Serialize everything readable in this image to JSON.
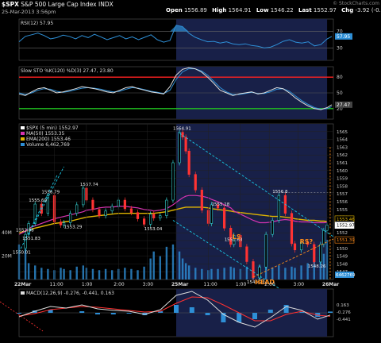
{
  "header": {
    "symbol": "$SPX",
    "name": "S&P 500 Large Cap Index",
    "exchange": "INDX",
    "datetime": "25-Mar-2013 3:56pm",
    "open_label": "Open",
    "open": "1556.89",
    "high_label": "High",
    "high": "1564.91",
    "low_label": "Low",
    "low": "1546.22",
    "last_label": "Last",
    "last": "1552.97",
    "chg_label": "Chg",
    "chg": "-3.92 (-0.25%)",
    "watermark": "© StockCharts.com"
  },
  "colors": {
    "background": "#000000",
    "price_line": "#ffffff",
    "candle_up": "#35d3d3",
    "candle_down": "#ff3333",
    "ma50": "#d633b0",
    "ema200": "#e0b400",
    "volume": "#2e8fd6",
    "annotation": "#ff8c1a",
    "trendline": "#18c8e6",
    "rsi_line": "#2e8fd6",
    "stoch_k": "#dddddd",
    "stoch_d": "#2e8fd6",
    "overbought": "#ff2020",
    "oversold": "#20c020",
    "macd": "#dddddd",
    "macd_signal": "#ff3030",
    "macd_hist": "#2e8fd6",
    "shade": "#182048"
  },
  "chart_data": [
    {
      "type": "line",
      "panel": "rsi",
      "legend": "RSI(12) 57.95",
      "ylim": [
        0,
        100
      ],
      "levels": [
        30,
        70
      ],
      "tick_labels": [
        "70",
        "30"
      ],
      "last_label": "57.95",
      "x": [
        0,
        4,
        8,
        12,
        16,
        20,
        24,
        28,
        32,
        36,
        40,
        44,
        48,
        52,
        56,
        60,
        64,
        68,
        72,
        76,
        80,
        84,
        88,
        92,
        96,
        100,
        104,
        108,
        112,
        116,
        120,
        124,
        128,
        132,
        136,
        140,
        144,
        148,
        152,
        156,
        160,
        164,
        168,
        172,
        176,
        180,
        184,
        188,
        192,
        196,
        199
      ],
      "values": [
        45,
        58,
        62,
        66,
        60,
        52,
        55,
        61,
        58,
        52,
        60,
        55,
        63,
        57,
        50,
        55,
        60,
        52,
        57,
        50,
        56,
        62,
        50,
        44,
        48,
        85,
        82,
        66,
        56,
        50,
        45,
        46,
        42,
        45,
        40,
        38,
        40,
        36,
        34,
        30,
        32,
        38,
        46,
        50,
        44,
        42,
        45,
        35,
        38,
        52,
        57.95
      ]
    },
    {
      "type": "line",
      "panel": "stochastic",
      "legend": "Slow STO %K(120) %D(3) 27.47, 23.80",
      "ylim": [
        0,
        100
      ],
      "levels": [
        20,
        80
      ],
      "tick_labels": [
        "80",
        "50",
        "20"
      ],
      "last_label": "27.47",
      "x": [
        0,
        4,
        8,
        12,
        16,
        20,
        24,
        28,
        32,
        36,
        40,
        44,
        48,
        52,
        56,
        60,
        64,
        68,
        72,
        76,
        80,
        84,
        88,
        92,
        96,
        100,
        104,
        108,
        112,
        116,
        120,
        124,
        128,
        132,
        136,
        140,
        144,
        148,
        152,
        156,
        160,
        164,
        168,
        172,
        176,
        180,
        184,
        188,
        192,
        196,
        199
      ],
      "series": [
        {
          "name": "%K",
          "values": [
            48,
            45,
            52,
            58,
            60,
            55,
            50,
            52,
            55,
            58,
            62,
            60,
            58,
            55,
            52,
            50,
            55,
            60,
            62,
            58,
            55,
            52,
            50,
            48,
            62,
            84,
            95,
            98,
            96,
            90,
            80,
            68,
            55,
            50,
            45,
            48,
            50,
            52,
            48,
            50,
            55,
            60,
            58,
            50,
            40,
            32,
            25,
            20,
            18,
            22,
            27.47
          ]
        },
        {
          "name": "%D",
          "values": [
            50,
            47,
            50,
            55,
            58,
            57,
            53,
            51,
            53,
            56,
            59,
            60,
            59,
            57,
            54,
            52,
            53,
            57,
            60,
            59,
            56,
            53,
            51,
            49,
            55,
            76,
            90,
            96,
            96,
            92,
            84,
            72,
            60,
            52,
            47,
            47,
            49,
            51,
            49,
            49,
            52,
            57,
            58,
            53,
            44,
            35,
            28,
            22,
            19,
            20,
            23.8
          ]
        }
      ]
    },
    {
      "type": "line",
      "panel": "price",
      "legend": [
        "$SPX (5 min) 1552.97",
        "MA(50) 1553.35",
        "EMA(200) 1553.46",
        "Volume 6,462,769"
      ],
      "ylim": [
        1546,
        1566
      ],
      "y_ticks": [
        1547,
        1548,
        1549,
        1550,
        1551,
        1552,
        1553,
        1554,
        1555,
        1556,
        1557,
        1558,
        1559,
        1560,
        1561,
        1562,
        1563,
        1564,
        1565
      ],
      "volume_ticks": [
        "40M",
        "20M"
      ],
      "x_tick_labels": [
        "22Mar",
        "11:00",
        "1:00",
        "2:00",
        "3:00",
        "25Mar",
        "11:00",
        "1:00",
        "2:00",
        "3:00",
        "26Mar"
      ],
      "x_tick_positions": [
        0,
        11,
        21,
        31,
        40,
        49,
        59,
        69,
        78,
        87,
        96
      ],
      "x": [
        0,
        2,
        3,
        5,
        7,
        9,
        11,
        13,
        14,
        16,
        18,
        20,
        21,
        23,
        25,
        27,
        29,
        31,
        33,
        35,
        37,
        39,
        41,
        42,
        44,
        46,
        48,
        50,
        51,
        52,
        53,
        55,
        57,
        59,
        60,
        62,
        64,
        66,
        67,
        69,
        71,
        73,
        75,
        77,
        79,
        81,
        83,
        85,
        86,
        88,
        90,
        92,
        94,
        95,
        96
      ],
      "price": [
        1550.01,
        1551.8,
        1553.2,
        1555.69,
        1554.5,
        1556.79,
        1553.4,
        1553.0,
        1553.3,
        1554.5,
        1555.6,
        1557.74,
        1556.2,
        1555.0,
        1554.2,
        1554.8,
        1555.4,
        1556.2,
        1555.1,
        1554.6,
        1553.8,
        1553.1,
        1554.4,
        1553.9,
        1554.2,
        1556.2,
        1561.0,
        1564.91,
        1564.3,
        1562.5,
        1559.5,
        1557.5,
        1554.9,
        1553.2,
        1555.6,
        1555.18,
        1552.6,
        1550.5,
        1551.68,
        1550.2,
        1548.3,
        1546.22,
        1547.6,
        1551.8,
        1553.6,
        1556.8,
        1554.5,
        1550.6,
        1549.8,
        1550.8,
        1550.5,
        1548.26,
        1550.5,
        1552.3,
        1552.97
      ],
      "ma50": [
        1551.8,
        1552.2,
        1552.6,
        1552.9,
        1553.2,
        1553.5,
        1553.8,
        1554.0,
        1554.1,
        1554.3,
        1554.5,
        1554.7,
        1554.9,
        1555.0,
        1555.2,
        1555.3,
        1555.3,
        1555.4,
        1555.4,
        1555.3,
        1555.2,
        1555.0,
        1554.9,
        1554.8,
        1554.9,
        1555.1,
        1555.6,
        1556.2,
        1556.5,
        1556.7,
        1556.8,
        1556.8,
        1556.7,
        1556.5,
        1556.3,
        1556.0,
        1555.6,
        1555.2,
        1554.8,
        1554.4,
        1554.0,
        1553.6,
        1553.3,
        1553.3,
        1553.4,
        1553.6,
        1553.7,
        1553.6,
        1553.5,
        1553.4,
        1553.4,
        1553.3,
        1553.3,
        1553.3,
        1553.35
      ],
      "ema200": [
        1552.0,
        1552.2,
        1552.4,
        1552.6,
        1552.8,
        1553.0,
        1553.2,
        1553.3,
        1553.4,
        1553.5,
        1553.7,
        1553.9,
        1554.0,
        1554.1,
        1554.2,
        1554.3,
        1554.4,
        1554.5,
        1554.5,
        1554.5,
        1554.5,
        1554.5,
        1554.5,
        1554.5,
        1554.6,
        1554.7,
        1554.9,
        1555.1,
        1555.2,
        1555.3,
        1555.3,
        1555.3,
        1555.3,
        1555.2,
        1555.1,
        1555.0,
        1554.9,
        1554.8,
        1554.7,
        1554.6,
        1554.5,
        1554.4,
        1554.3,
        1554.2,
        1554.1,
        1554.1,
        1554.0,
        1553.9,
        1553.8,
        1553.7,
        1553.6,
        1553.6,
        1553.5,
        1553.5,
        1553.46
      ],
      "volume": [
        30,
        26,
        14,
        12,
        10,
        9,
        8,
        10,
        9,
        8,
        11,
        12,
        10,
        9,
        8,
        9,
        8,
        9,
        10,
        9,
        8,
        11,
        18,
        24,
        20,
        28,
        30,
        24,
        18,
        14,
        12,
        10,
        9,
        8,
        9,
        9,
        10,
        11,
        10,
        9,
        11,
        14,
        12,
        11,
        10,
        12,
        10,
        11,
        10,
        12,
        14,
        16,
        18,
        22,
        34
      ],
      "price_labels": [
        {
          "x": 0,
          "y": 1550.01,
          "text": "1550.01"
        },
        {
          "x": 1,
          "y": 1552.88,
          "text": "1552.88"
        },
        {
          "x": 3,
          "y": 1551.83,
          "text": "1551.83"
        },
        {
          "x": 5,
          "y": 1555.69,
          "text": "1555.69"
        },
        {
          "x": 9,
          "y": 1556.79,
          "text": "1556.79"
        },
        {
          "x": 16,
          "y": 1553.29,
          "text": "1553.29"
        },
        {
          "x": 21,
          "y": 1557.74,
          "text": "1557.74"
        },
        {
          "x": 41,
          "y": 1553.04,
          "text": "1553.04"
        },
        {
          "x": 50,
          "y": 1564.91,
          "text": "1564.91"
        },
        {
          "x": 62,
          "y": 1555.18,
          "text": "1555.18"
        },
        {
          "x": 66,
          "y": 1551.68,
          "text": "1551.68"
        },
        {
          "x": 73,
          "y": 1546.22,
          "text": "1546.22"
        },
        {
          "x": 81,
          "y": 1556.8,
          "text": "1556.8"
        },
        {
          "x": 92,
          "y": 1548.26,
          "text": "1548.26"
        }
      ],
      "right_labels": [
        {
          "y": 1553.46,
          "text": "1553.46"
        },
        {
          "y": 1552.97,
          "text": "1552.97"
        },
        {
          "y": 1551.39,
          "text": "1551.39"
        }
      ],
      "volume_right_label": "6462769",
      "annotations": [
        {
          "x": 68,
          "y": 1551.2,
          "text": "LS"
        },
        {
          "x": 75,
          "y": 1545.4,
          "text": "HEAD"
        },
        {
          "x": 89,
          "y": 1550.6,
          "text": "RS?"
        }
      ]
    },
    {
      "type": "line",
      "panel": "macd",
      "legend": "MACD(12,26,9) -0.276, -0.441, 0.163",
      "ylim": [
        -3,
        3
      ],
      "tick_labels": [
        "0.163",
        "-0.276",
        "-0.441"
      ],
      "x": [
        0,
        5,
        10,
        15,
        20,
        25,
        30,
        35,
        40,
        45,
        50,
        55,
        60,
        65,
        70,
        75,
        80,
        85,
        90,
        95,
        99
      ],
      "series": [
        {
          "name": "MACD",
          "values": [
            -0.5,
            0.2,
            0.8,
            0.6,
            1.0,
            0.5,
            0.3,
            0.2,
            -0.2,
            0.4,
            2.2,
            2.7,
            1.6,
            -0.2,
            -1.2,
            -1.8,
            -0.6,
            0.8,
            0.3,
            -0.8,
            -0.276
          ]
        },
        {
          "name": "Signal",
          "values": [
            -0.4,
            -0.1,
            0.4,
            0.6,
            0.8,
            0.7,
            0.5,
            0.3,
            0.1,
            0.2,
            1.2,
            2.0,
            1.9,
            1.0,
            0.0,
            -1.0,
            -1.0,
            -0.2,
            0.2,
            -0.3,
            -0.441
          ]
        },
        {
          "name": "Histogram",
          "values": [
            -0.1,
            0.3,
            0.4,
            0.0,
            0.2,
            -0.2,
            -0.2,
            -0.1,
            -0.3,
            0.2,
            1.0,
            0.7,
            -0.3,
            -1.2,
            -1.2,
            -0.8,
            0.4,
            1.0,
            0.1,
            -0.5,
            0.163
          ]
        }
      ]
    }
  ]
}
